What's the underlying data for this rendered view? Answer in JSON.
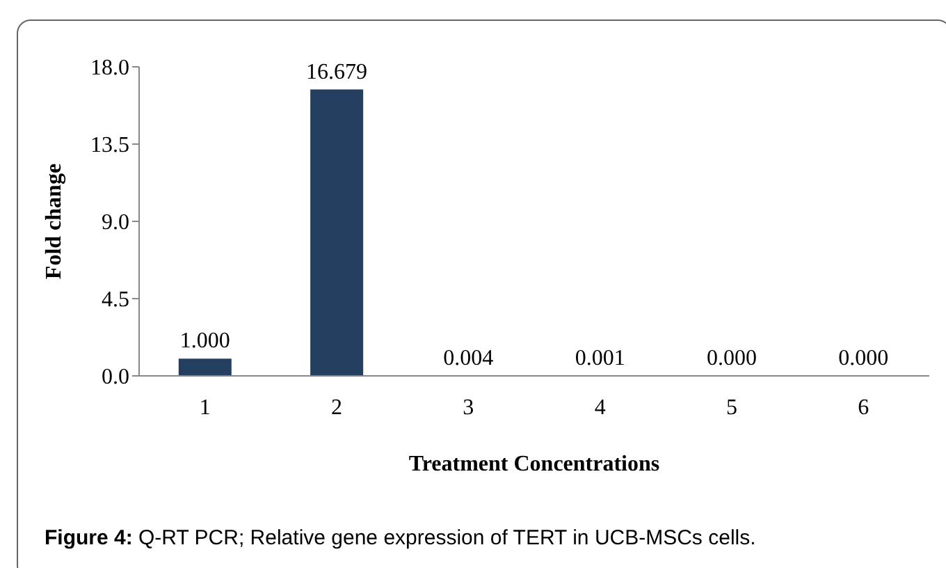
{
  "chart_data": {
    "type": "bar",
    "xlabel": "Treatment Concentrations",
    "ylabel": "Fold change",
    "categories": [
      "1",
      "2",
      "3",
      "4",
      "5",
      "6"
    ],
    "values": [
      1.0,
      16.679,
      0.004,
      0.001,
      0.0,
      0.0
    ],
    "value_labels": [
      "1.000",
      "16.679",
      "0.004",
      "0.001",
      "0.000",
      "0.000"
    ],
    "color": "#243f60",
    "ylim": [
      0,
      18
    ],
    "yticks": [
      {
        "value": 0,
        "label": "0.0"
      },
      {
        "value": 4.5,
        "label": "4.5"
      },
      {
        "value": 9,
        "label": "9.0"
      },
      {
        "value": 13.5,
        "label": "13.5"
      },
      {
        "value": 18,
        "label": "18.0"
      }
    ],
    "grid": false,
    "legend": false,
    "annotations": [
      "Figure 4: Q-RT PCR; Relative gene expression of TERT in UCB-MSCs cells."
    ]
  }
}
